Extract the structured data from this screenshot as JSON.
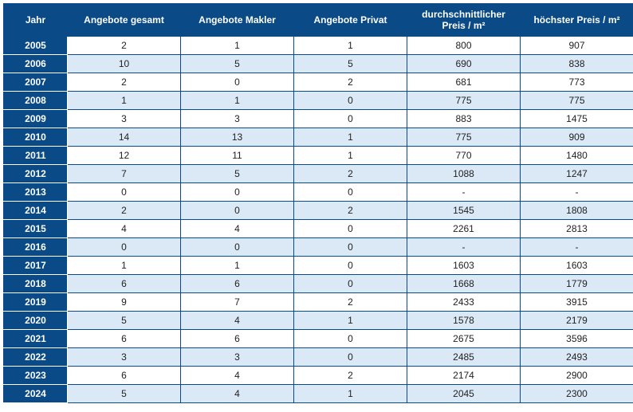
{
  "table": {
    "type": "table",
    "header_bg": "#0a4a87",
    "header_color": "#ffffff",
    "row_alt_bg": "#dbe9f6",
    "row_bg": "#ffffff",
    "border_color": "#0a4a87",
    "font_family": "Arial",
    "header_fontsize": 12,
    "cell_fontsize": 12,
    "columns": [
      {
        "label": "Jahr"
      },
      {
        "label": "Angebote gesamt"
      },
      {
        "label": "Angebote Makler"
      },
      {
        "label": "Angebote Privat"
      },
      {
        "label": "durchschnittlicher Preis / m²"
      },
      {
        "label": "höchster Preis / m²"
      }
    ],
    "rows": [
      {
        "year": "2005",
        "gesamt": "2",
        "makler": "1",
        "privat": "1",
        "avg": "800",
        "max": "907"
      },
      {
        "year": "2006",
        "gesamt": "10",
        "makler": "5",
        "privat": "5",
        "avg": "690",
        "max": "838"
      },
      {
        "year": "2007",
        "gesamt": "2",
        "makler": "0",
        "privat": "2",
        "avg": "681",
        "max": "773"
      },
      {
        "year": "2008",
        "gesamt": "1",
        "makler": "1",
        "privat": "0",
        "avg": "775",
        "max": "775"
      },
      {
        "year": "2009",
        "gesamt": "3",
        "makler": "3",
        "privat": "0",
        "avg": "883",
        "max": "1475"
      },
      {
        "year": "2010",
        "gesamt": "14",
        "makler": "13",
        "privat": "1",
        "avg": "775",
        "max": "909"
      },
      {
        "year": "2011",
        "gesamt": "12",
        "makler": "11",
        "privat": "1",
        "avg": "770",
        "max": "1480"
      },
      {
        "year": "2012",
        "gesamt": "7",
        "makler": "5",
        "privat": "2",
        "avg": "1088",
        "max": "1247"
      },
      {
        "year": "2013",
        "gesamt": "0",
        "makler": "0",
        "privat": "0",
        "avg": "-",
        "max": "-"
      },
      {
        "year": "2014",
        "gesamt": "2",
        "makler": "0",
        "privat": "2",
        "avg": "1545",
        "max": "1808"
      },
      {
        "year": "2015",
        "gesamt": "4",
        "makler": "4",
        "privat": "0",
        "avg": "2261",
        "max": "2813"
      },
      {
        "year": "2016",
        "gesamt": "0",
        "makler": "0",
        "privat": "0",
        "avg": "-",
        "max": "-"
      },
      {
        "year": "2017",
        "gesamt": "1",
        "makler": "1",
        "privat": "0",
        "avg": "1603",
        "max": "1603"
      },
      {
        "year": "2018",
        "gesamt": "6",
        "makler": "6",
        "privat": "0",
        "avg": "1668",
        "max": "1779"
      },
      {
        "year": "2019",
        "gesamt": "9",
        "makler": "7",
        "privat": "2",
        "avg": "2433",
        "max": "3915"
      },
      {
        "year": "2020",
        "gesamt": "5",
        "makler": "4",
        "privat": "1",
        "avg": "1578",
        "max": "2179"
      },
      {
        "year": "2021",
        "gesamt": "6",
        "makler": "6",
        "privat": "0",
        "avg": "2675",
        "max": "3596"
      },
      {
        "year": "2022",
        "gesamt": "3",
        "makler": "3",
        "privat": "0",
        "avg": "2485",
        "max": "2493"
      },
      {
        "year": "2023",
        "gesamt": "6",
        "makler": "4",
        "privat": "2",
        "avg": "2174",
        "max": "2900"
      },
      {
        "year": "2024",
        "gesamt": "5",
        "makler": "4",
        "privat": "1",
        "avg": "2045",
        "max": "2300"
      }
    ]
  }
}
